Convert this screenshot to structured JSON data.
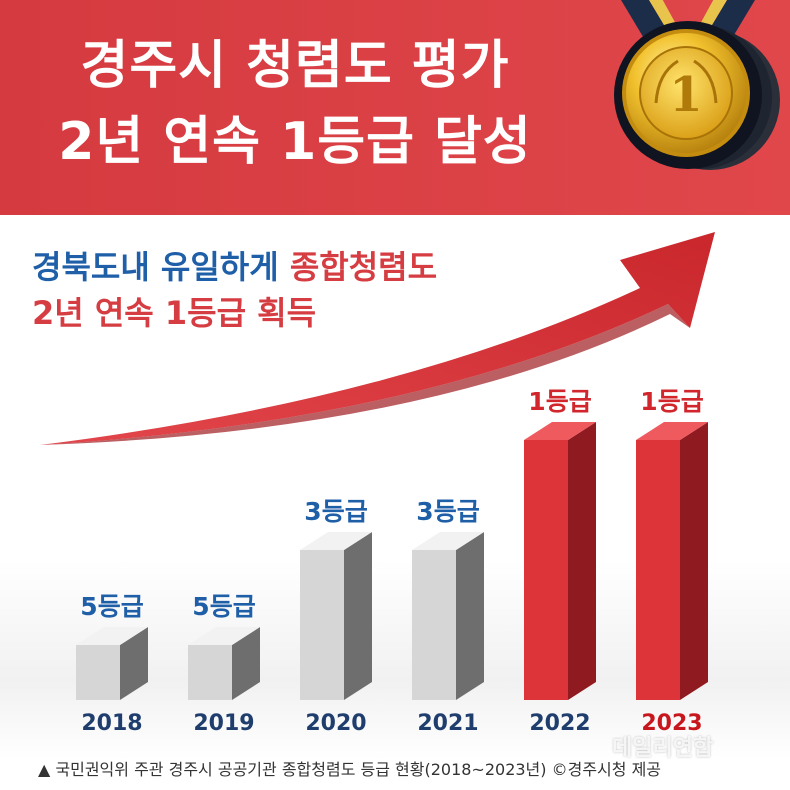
{
  "header": {
    "title_line1": "경주시 청렴도 평가",
    "title_line2": "2년 연속 1등급 달성",
    "medal_number": "1",
    "medal_icon": "gold-medal-icon",
    "banner_color": "#d83e43"
  },
  "subtitle": {
    "line1_part1": "경북도내 유일하게 ",
    "line1_part2": "종합청렴도",
    "line2": "2년 연속 1등급 획득",
    "blue": "#1f5fa8",
    "red": "#d53d42"
  },
  "chart_data": {
    "type": "bar",
    "categories": [
      "2018",
      "2019",
      "2020",
      "2021",
      "2022",
      "2023"
    ],
    "values": [
      5,
      5,
      3,
      3,
      1,
      1
    ],
    "data_labels": [
      "5등급",
      "5등급",
      "3등급",
      "3등급",
      "1등급",
      "1등급"
    ],
    "highlight": [
      false,
      false,
      false,
      false,
      true,
      true
    ],
    "colors": {
      "gray": "#c9c9c9",
      "red": "#d93035",
      "label_blue": "#1f5fa8",
      "label_red": "#d0262c",
      "year_blue": "#1f3e6e",
      "year_red": "#c8161e"
    },
    "ylim": [
      5,
      1
    ],
    "grid": false
  },
  "footer": {
    "text": "▲ 국민권익위 주관 경주시 공공기관 종합청렴도 등급 현황(2018~2023년) ©경주시청 제공",
    "watermark": "데일리연합"
  }
}
